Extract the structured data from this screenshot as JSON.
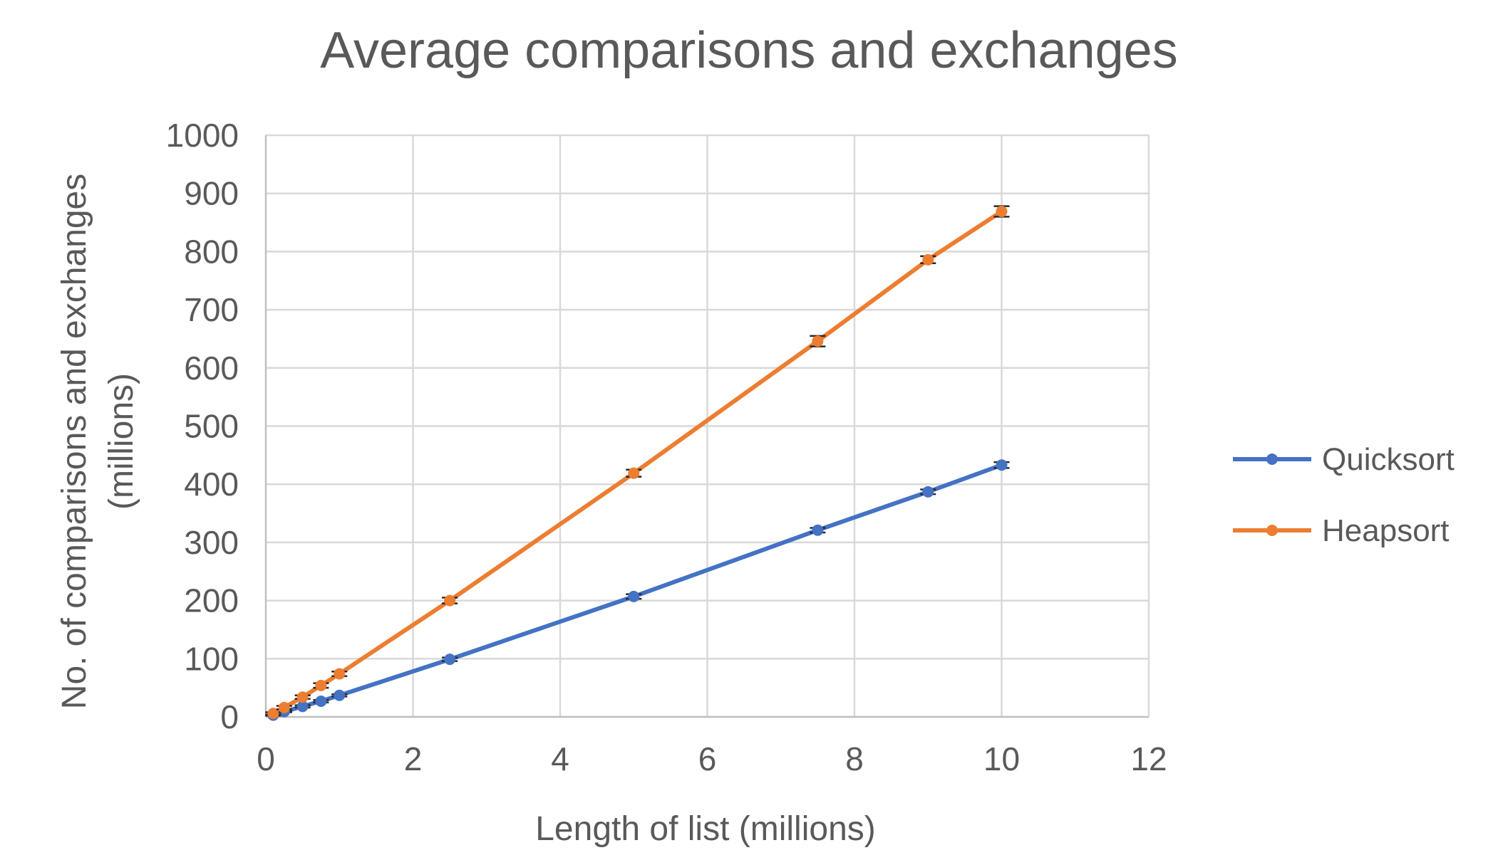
{
  "chart_data": {
    "type": "line",
    "title": "Average comparisons and exchanges",
    "xlabel": "Length of list (millions)",
    "ylabel_line1": "No. of comparisons and exchanges",
    "ylabel_line2": "(millions)",
    "xlim": [
      0,
      12
    ],
    "ylim": [
      0,
      1000
    ],
    "x_ticks": [
      0,
      2,
      4,
      6,
      8,
      10,
      12
    ],
    "y_ticks": [
      0,
      100,
      200,
      300,
      400,
      500,
      600,
      700,
      800,
      900,
      1000
    ],
    "grid": true,
    "legend_position": "right",
    "error_bars": true,
    "series": [
      {
        "name": "Quicksort",
        "color": "#4472c4",
        "x": [
          0.1,
          0.25,
          0.5,
          0.75,
          1,
          2.5,
          5,
          7.5,
          9,
          10
        ],
        "y": [
          3,
          9,
          18,
          27,
          37,
          99,
          207,
          321,
          387,
          433
        ],
        "err": [
          1,
          1,
          2,
          2,
          2,
          3,
          4,
          4,
          4,
          5
        ]
      },
      {
        "name": "Heapsort",
        "color": "#ed7d31",
        "x": [
          0.1,
          0.25,
          0.5,
          0.75,
          1,
          2.5,
          5,
          7.5,
          9,
          10
        ],
        "y": [
          6,
          16,
          34,
          54,
          74,
          200,
          419,
          646,
          786,
          869
        ],
        "err": [
          2,
          3,
          3,
          4,
          4,
          5,
          6,
          9,
          6,
          9
        ]
      }
    ]
  }
}
